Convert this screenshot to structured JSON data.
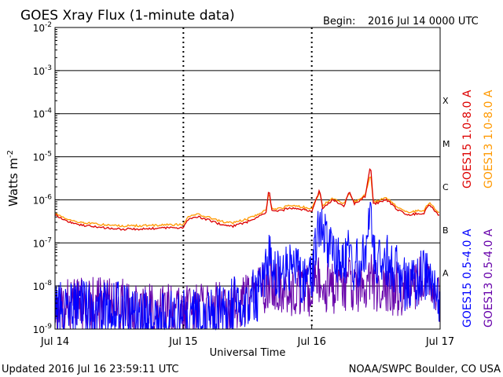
{
  "header": {
    "title": "GOES Xray Flux (1-minute data)",
    "begin_label": "Begin:",
    "begin_value": "2016 Jul 14 0000 UTC"
  },
  "footer": {
    "updated": "Updated 2016 Jul 16 23:59:11 UTC",
    "credit": "NOAA/SWPC Boulder, CO USA"
  },
  "colors": {
    "goes15_long": "#dd0000",
    "goes13_long": "#ff9900",
    "goes15_short": "#0000ff",
    "goes13_short": "#6600aa",
    "grid": "#000000"
  },
  "chart_data": {
    "type": "line",
    "title": "GOES Xray Flux (1-minute data)",
    "xlabel": "Universal Time",
    "ylabel": "Watts m",
    "ylabel_exponent": "-2",
    "yscale": "log",
    "ylim": [
      1e-09,
      0.01
    ],
    "y_ticks": [
      {
        "value": 1e-09,
        "base": "10",
        "exp": "-9"
      },
      {
        "value": 1e-08,
        "base": "10",
        "exp": "-8"
      },
      {
        "value": 1e-07,
        "base": "10",
        "exp": "-7"
      },
      {
        "value": 1e-06,
        "base": "10",
        "exp": "-6"
      },
      {
        "value": 1e-05,
        "base": "10",
        "exp": "-5"
      },
      {
        "value": 0.0001,
        "base": "10",
        "exp": "-4"
      },
      {
        "value": 0.001,
        "base": "10",
        "exp": "-3"
      },
      {
        "value": 0.01,
        "base": "10",
        "exp": "-2"
      }
    ],
    "xlim": [
      "2016-07-14",
      "2016-07-17"
    ],
    "x_ticks": [
      {
        "x": "2016-07-14",
        "label": "Jul 14"
      },
      {
        "x": "2016-07-15",
        "label": "Jul 15"
      },
      {
        "x": "2016-07-16",
        "label": "Jul 16"
      },
      {
        "x": "2016-07-17",
        "label": "Jul 17"
      }
    ],
    "grid": true,
    "flare_classes": [
      {
        "label": "A",
        "value": 2e-08
      },
      {
        "label": "B",
        "value": 2e-07
      },
      {
        "label": "C",
        "value": 2e-06
      },
      {
        "label": "M",
        "value": 2e-05
      },
      {
        "label": "X",
        "value": 0.0002
      }
    ],
    "legend_position": "right",
    "series": [
      {
        "name": "GOES15 1.0-8.0 A",
        "color": "#dd0000",
        "style": "line",
        "points": [
          [
            "2016-07-14 00:00",
            4.5e-07
          ],
          [
            "2016-07-14 02:00",
            3.3e-07
          ],
          [
            "2016-07-14 04:00",
            2.7e-07
          ],
          [
            "2016-07-14 06:00",
            2.5e-07
          ],
          [
            "2016-07-14 08:00",
            2.3e-07
          ],
          [
            "2016-07-14 12:00",
            2.1e-07
          ],
          [
            "2016-07-14 16:00",
            2.1e-07
          ],
          [
            "2016-07-14 20:00",
            2.2e-07
          ],
          [
            "2016-07-15 00:00",
            2.3e-07
          ],
          [
            "2016-07-15 01:00",
            3.6e-07
          ],
          [
            "2016-07-15 03:00",
            4e-07
          ],
          [
            "2016-07-15 05:00",
            3.3e-07
          ],
          [
            "2016-07-15 07:00",
            2.7e-07
          ],
          [
            "2016-07-15 09:00",
            2.4e-07
          ],
          [
            "2016-07-15 12:00",
            3.1e-07
          ],
          [
            "2016-07-15 14:00",
            4.1e-07
          ],
          [
            "2016-07-15 15:30",
            5e-07
          ],
          [
            "2016-07-15 16:00",
            1.9e-06
          ],
          [
            "2016-07-15 16:30",
            5.5e-07
          ],
          [
            "2016-07-15 18:00",
            5.5e-07
          ],
          [
            "2016-07-15 20:00",
            6.5e-07
          ],
          [
            "2016-07-15 22:00",
            6e-07
          ],
          [
            "2016-07-16 00:00",
            5.5e-07
          ],
          [
            "2016-07-16 01:30",
            1.7e-06
          ],
          [
            "2016-07-16 02:00",
            6.5e-07
          ],
          [
            "2016-07-16 04:00",
            1e-06
          ],
          [
            "2016-07-16 06:00",
            7e-07
          ],
          [
            "2016-07-16 07:00",
            1.5e-06
          ],
          [
            "2016-07-16 08:00",
            8e-07
          ],
          [
            "2016-07-16 10:00",
            1.2e-06
          ],
          [
            "2016-07-16 11:00",
            6.5e-06
          ],
          [
            "2016-07-16 11:30",
            8e-07
          ],
          [
            "2016-07-16 14:00",
            1e-06
          ],
          [
            "2016-07-16 16:00",
            6e-07
          ],
          [
            "2016-07-16 18:00",
            4.5e-07
          ],
          [
            "2016-07-16 21:00",
            5e-07
          ],
          [
            "2016-07-16 22:00",
            8e-07
          ],
          [
            "2016-07-17 00:00",
            4e-07
          ]
        ]
      },
      {
        "name": "GOES13 1.0-8.0 A",
        "color": "#ff9900",
        "style": "line",
        "points": [
          [
            "2016-07-14 00:00",
            5e-07
          ],
          [
            "2016-07-14 02:00",
            3.7e-07
          ],
          [
            "2016-07-14 04:00",
            3.1e-07
          ],
          [
            "2016-07-14 06:00",
            2.9e-07
          ],
          [
            "2016-07-14 08:00",
            2.7e-07
          ],
          [
            "2016-07-14 12:00",
            2.5e-07
          ],
          [
            "2016-07-14 16:00",
            2.5e-07
          ],
          [
            "2016-07-14 20:00",
            2.6e-07
          ],
          [
            "2016-07-15 00:00",
            2.7e-07
          ],
          [
            "2016-07-15 01:00",
            4.2e-07
          ],
          [
            "2016-07-15 03:00",
            4.6e-07
          ],
          [
            "2016-07-15 05:00",
            3.8e-07
          ],
          [
            "2016-07-15 07:00",
            3.2e-07
          ],
          [
            "2016-07-15 09:00",
            2.9e-07
          ],
          [
            "2016-07-15 12:00",
            3.6e-07
          ],
          [
            "2016-07-15 14:00",
            4.7e-07
          ],
          [
            "2016-07-15 15:30",
            5.8e-07
          ],
          [
            "2016-07-15 16:00",
            1.6e-06
          ],
          [
            "2016-07-15 16:30",
            6.3e-07
          ],
          [
            "2016-07-15 18:00",
            6.3e-07
          ],
          [
            "2016-07-15 20:00",
            7.4e-07
          ],
          [
            "2016-07-15 22:00",
            6.9e-07
          ],
          [
            "2016-07-16 00:00",
            6.3e-07
          ],
          [
            "2016-07-16 01:30",
            1.5e-06
          ],
          [
            "2016-07-16 02:00",
            7.4e-07
          ],
          [
            "2016-07-16 04:00",
            1.1e-06
          ],
          [
            "2016-07-16 06:00",
            8e-07
          ],
          [
            "2016-07-16 07:00",
            1.4e-06
          ],
          [
            "2016-07-16 08:00",
            9e-07
          ],
          [
            "2016-07-16 10:00",
            1.3e-06
          ],
          [
            "2016-07-16 11:00",
            4e-06
          ],
          [
            "2016-07-16 11:30",
            9e-07
          ],
          [
            "2016-07-16 14:00",
            1.1e-06
          ],
          [
            "2016-07-16 16:00",
            6.9e-07
          ],
          [
            "2016-07-16 18:00",
            5.2e-07
          ],
          [
            "2016-07-16 21:00",
            5.8e-07
          ],
          [
            "2016-07-16 22:00",
            9e-07
          ],
          [
            "2016-07-17 00:00",
            4.6e-07
          ]
        ]
      },
      {
        "name": "GOES15 0.5-4.0 A",
        "color": "#0000ff",
        "style": "noisy",
        "points": [
          [
            "2016-07-14 00:00",
            3e-09
          ],
          [
            "2016-07-14 04:00",
            4e-09
          ],
          [
            "2016-07-14 08:00",
            3e-09
          ],
          [
            "2016-07-14 10:00",
            4e-09
          ],
          [
            "2016-07-14 16:00",
            2.5e-09
          ],
          [
            "2016-07-14 20:00",
            2e-09
          ],
          [
            "2016-07-15 00:00",
            2.5e-09
          ],
          [
            "2016-07-15 04:00",
            3e-09
          ],
          [
            "2016-07-15 08:00",
            4e-09
          ],
          [
            "2016-07-15 12:00",
            5e-09
          ],
          [
            "2016-07-15 14:00",
            8e-09
          ],
          [
            "2016-07-15 16:00",
            6e-08
          ],
          [
            "2016-07-15 18:00",
            1.5e-08
          ],
          [
            "2016-07-15 20:00",
            3e-08
          ],
          [
            "2016-07-15 22:00",
            2e-08
          ],
          [
            "2016-07-16 00:00",
            1.5e-08
          ],
          [
            "2016-07-16 01:30",
            4e-07
          ],
          [
            "2016-07-16 04:00",
            6e-08
          ],
          [
            "2016-07-16 06:00",
            4e-08
          ],
          [
            "2016-07-16 07:00",
            2e-07
          ],
          [
            "2016-07-16 08:00",
            3e-08
          ],
          [
            "2016-07-16 10:00",
            8e-08
          ],
          [
            "2016-07-16 11:00",
            8e-07
          ],
          [
            "2016-07-16 12:00",
            3e-08
          ],
          [
            "2016-07-16 14:00",
            5e-08
          ],
          [
            "2016-07-16 18:00",
            1e-08
          ],
          [
            "2016-07-16 22:00",
            3e-08
          ],
          [
            "2016-07-17 00:00",
            5e-09
          ]
        ]
      },
      {
        "name": "GOES13 0.5-4.0 A",
        "color": "#6600aa",
        "style": "noisy",
        "points": [
          [
            "2016-07-14 00:00",
            3e-09
          ],
          [
            "2016-07-14 04:00",
            5e-09
          ],
          [
            "2016-07-14 08:00",
            4e-09
          ],
          [
            "2016-07-14 10:00",
            5e-09
          ],
          [
            "2016-07-14 16:00",
            3e-09
          ],
          [
            "2016-07-14 20:00",
            3e-09
          ],
          [
            "2016-07-15 00:00",
            3e-09
          ],
          [
            "2016-07-15 04:00",
            3e-09
          ],
          [
            "2016-07-15 08:00",
            4e-09
          ],
          [
            "2016-07-15 12:00",
            5e-09
          ],
          [
            "2016-07-15 14:00",
            7e-09
          ],
          [
            "2016-07-15 16:00",
            1.5e-08
          ],
          [
            "2016-07-15 18:00",
            8e-09
          ],
          [
            "2016-07-15 20:00",
            1e-08
          ],
          [
            "2016-07-15 22:00",
            1e-08
          ],
          [
            "2016-07-16 00:00",
            9e-09
          ],
          [
            "2016-07-16 01:30",
            1.5e-08
          ],
          [
            "2016-07-16 04:00",
            1e-08
          ],
          [
            "2016-07-16 06:00",
            1e-08
          ],
          [
            "2016-07-16 07:00",
            2e-08
          ],
          [
            "2016-07-16 08:00",
            1e-08
          ],
          [
            "2016-07-16 10:00",
            1.2e-08
          ],
          [
            "2016-07-16 11:00",
            2.5e-08
          ],
          [
            "2016-07-16 12:00",
            1e-08
          ],
          [
            "2016-07-16 14:00",
            1.2e-08
          ],
          [
            "2016-07-16 18:00",
            8e-09
          ],
          [
            "2016-07-16 22:00",
            2e-08
          ],
          [
            "2016-07-17 00:00",
            4e-09
          ]
        ]
      }
    ]
  }
}
